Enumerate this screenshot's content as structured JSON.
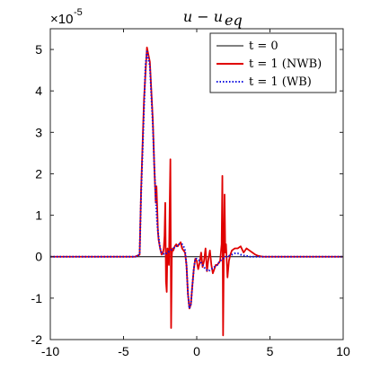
{
  "chart_data": {
    "type": "line",
    "title": "u − u",
    "title_subscript": "eq",
    "exponent_base": "×10",
    "exponent_power": "-5",
    "xlim": [
      -10,
      10
    ],
    "ylim": [
      -2,
      5.5
    ],
    "x_ticks": [
      -10,
      -5,
      0,
      5,
      10
    ],
    "x_tick_labels": [
      "-10",
      "-5",
      "0",
      "5",
      "10"
    ],
    "y_ticks": [
      -2,
      -1,
      0,
      1,
      2,
      3,
      4,
      5
    ],
    "y_tick_labels": [
      "-2",
      "-1",
      "0",
      "1",
      "2",
      "3",
      "4",
      "5"
    ],
    "grid": false,
    "legend_position": "top-right",
    "series": [
      {
        "name": "t = 0",
        "legend_label": "t = 0",
        "color": "#000000",
        "style": "solid",
        "x": [
          -10,
          10
        ],
        "y": [
          0,
          0
        ]
      },
      {
        "name": "t = 1 (NWB)",
        "legend_label": "t = 1 (NWB)",
        "color": "#e00000",
        "style": "solid",
        "x": [
          -10,
          -4.2,
          -3.9,
          -3.8,
          -3.6,
          -3.4,
          -3.2,
          -3.0,
          -2.9,
          -2.8,
          -2.75,
          -2.7,
          -2.65,
          -2.6,
          -2.5,
          -2.4,
          -2.3,
          -2.25,
          -2.2,
          -2.15,
          -2.1,
          -2.05,
          -2.0,
          -1.95,
          -1.9,
          -1.85,
          -1.8,
          -1.75,
          -1.7,
          -1.65,
          -1.6,
          -1.5,
          -1.4,
          -1.3,
          -1.2,
          -1.1,
          -1.0,
          -0.9,
          -0.8,
          -0.7,
          -0.6,
          -0.5,
          -0.4,
          -0.3,
          -0.2,
          -0.1,
          0.0,
          0.1,
          0.2,
          0.3,
          0.4,
          0.5,
          0.6,
          0.7,
          0.8,
          0.9,
          1.0,
          1.1,
          1.2,
          1.3,
          1.4,
          1.5,
          1.6,
          1.7,
          1.75,
          1.8,
          1.85,
          1.9,
          1.95,
          2.0,
          2.1,
          2.2,
          2.3,
          2.4,
          2.6,
          2.8,
          3.0,
          3.2,
          3.4,
          3.6,
          3.8,
          4.0,
          4.2,
          4.5,
          5.0,
          10
        ],
        "y": [
          0,
          0,
          0.05,
          1.6,
          3.8,
          5.05,
          4.7,
          3.3,
          2.2,
          1.3,
          1.7,
          1.2,
          0.6,
          0.4,
          0.2,
          0.05,
          0.1,
          0.2,
          0.5,
          1.3,
          -0.6,
          -0.85,
          0.2,
          0.1,
          -0.2,
          1.15,
          2.35,
          -1.72,
          0.05,
          0.2,
          0.15,
          0.25,
          0.3,
          0.25,
          0.3,
          0.35,
          0.2,
          0.15,
          0.1,
          -0.2,
          -0.9,
          -1.25,
          -1.15,
          -0.7,
          -0.3,
          -0.05,
          -0.1,
          -0.3,
          -0.15,
          0.1,
          -0.25,
          -0.1,
          0.2,
          -0.35,
          -0.05,
          0.15,
          -0.2,
          -0.4,
          -0.3,
          -0.2,
          -0.2,
          -0.15,
          -0.1,
          0.3,
          1.95,
          -1.9,
          0.1,
          1.5,
          0.1,
          0.3,
          -0.5,
          -0.1,
          0.05,
          0.15,
          0.2,
          0.2,
          0.25,
          0.1,
          0.2,
          0.15,
          0.1,
          0.05,
          0.02,
          0.0,
          0.0,
          0.0
        ]
      },
      {
        "name": "t = 1 (WB)",
        "legend_label": "t = 1 (WB)",
        "color": "#1010e0",
        "style": "dotted",
        "x": [
          -10,
          -4.2,
          -3.9,
          -3.8,
          -3.6,
          -3.5,
          -3.4,
          -3.2,
          -3.0,
          -2.9,
          -2.8,
          -2.7,
          -2.6,
          -2.5,
          -2.4,
          -2.2,
          -2.0,
          -1.8,
          -1.6,
          -1.4,
          -1.2,
          -1.0,
          -0.9,
          -0.8,
          -0.7,
          -0.6,
          -0.5,
          -0.4,
          -0.3,
          -0.2,
          -0.1,
          0.0,
          0.2,
          0.4,
          0.6,
          0.8,
          1.0,
          1.2,
          1.4,
          1.6,
          1.8,
          2.0,
          2.2,
          2.4,
          2.6,
          2.8,
          3.0,
          3.2,
          3.4,
          3.6,
          3.8,
          4.0,
          4.5,
          5.0,
          10
        ],
        "y": [
          0,
          0,
          0.05,
          1.5,
          3.6,
          4.6,
          4.95,
          4.6,
          3.2,
          2.2,
          1.4,
          0.8,
          0.45,
          0.2,
          0.1,
          0.05,
          0.1,
          0.15,
          0.2,
          0.25,
          0.3,
          0.3,
          0.25,
          0.15,
          -0.2,
          -0.9,
          -1.25,
          -1.15,
          -0.7,
          -0.3,
          -0.05,
          -0.05,
          -0.1,
          -0.2,
          -0.3,
          -0.35,
          -0.3,
          -0.25,
          -0.2,
          -0.1,
          -0.05,
          0.0,
          0.02,
          0.05,
          0.08,
          0.08,
          0.05,
          0.03,
          0.02,
          0.0,
          0.0,
          0.0,
          0.0,
          0.0,
          0.0
        ]
      }
    ]
  }
}
